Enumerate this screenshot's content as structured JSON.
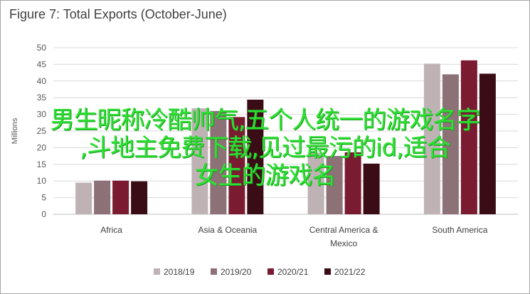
{
  "chart_data": {
    "type": "bar",
    "title": "Figure 7: Total Exports (October-June)",
    "ylabel": "Millions",
    "ylim": [
      0,
      50
    ],
    "yticks": [
      0,
      5,
      10,
      15,
      20,
      25,
      30,
      35,
      40,
      45,
      50
    ],
    "categories": [
      "Africa",
      "Asia & Oceania",
      "Central America & Mexico",
      "South America"
    ],
    "category_lines": [
      [
        "Africa"
      ],
      [
        "Asia & Oceania"
      ],
      [
        "Central America &",
        "Mexico"
      ],
      [
        "South America"
      ]
    ],
    "series": [
      {
        "name": "2018/19",
        "color": "#bfb2b5",
        "values": [
          9.5,
          31.8,
          18.5,
          45.2
        ]
      },
      {
        "name": "2019/20",
        "color": "#8c7176",
        "values": [
          10.1,
          31.0,
          17.5,
          42.0
        ]
      },
      {
        "name": "2020/21",
        "color": "#7a1b32",
        "values": [
          10.1,
          29.2,
          18.6,
          46.2
        ]
      },
      {
        "name": "2021/22",
        "color": "#3a0d16",
        "values": [
          9.9,
          34.4,
          15.2,
          42.2
        ]
      }
    ],
    "grid": true,
    "legend_position": "bottom"
  },
  "overlay_text": [
    "男生昵称冷酷帅气,五个人统一的游戏名字",
    ",斗地主免费下载,见过最污的id,适合",
    "女生的游戏名"
  ]
}
